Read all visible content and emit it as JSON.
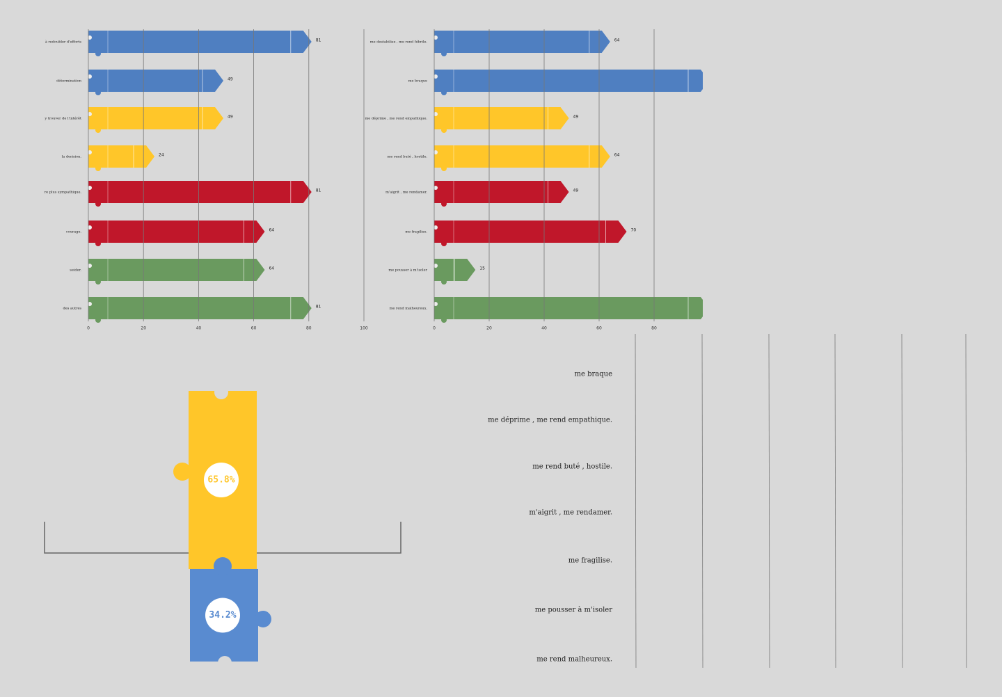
{
  "chart_data": [
    {
      "type": "bar",
      "categories": [
        "à redoubler d'efforts",
        "détermination",
        "y trouver de l'intérêt",
        "la derision.",
        "re plus sympathique.",
        "courage.",
        "seider.",
        "des autres"
      ],
      "values": [
        81,
        49,
        49,
        24,
        81,
        64,
        64,
        81
      ],
      "colors": [
        "#4f7fc1",
        "#4f7fc1",
        "#ffc629",
        "#ffc629",
        "#c0172a",
        "#c0172a",
        "#6a9a5f",
        "#6a9a5f"
      ],
      "xlim": [
        0,
        100
      ],
      "xticks": [
        0,
        20,
        40,
        60,
        80,
        100
      ],
      "grid": true
    },
    {
      "type": "bar",
      "categories": [
        "me destabilise , me rend fébrile.",
        "me braque",
        "me déprime , me rend empathique.",
        "me rend  buté , hostile.",
        "m'aigrit , me rendamer.",
        "me fragilise.",
        "me pousser à m'isoler",
        "me rend malheureux."
      ],
      "values": [
        64,
        100,
        49,
        64,
        49,
        70,
        15,
        100
      ],
      "value_labels": [
        "64",
        null,
        "49",
        "64",
        "49",
        "70",
        "15",
        null
      ],
      "colors": [
        "#4f7fc1",
        "#4f7fc1",
        "#ffc629",
        "#ffc629",
        "#c0172a",
        "#c0172a",
        "#6a9a5f",
        "#6a9a5f"
      ],
      "xlim": [
        0,
        100
      ],
      "xticks": [
        0,
        20,
        40,
        60,
        80
      ],
      "grid": true
    },
    {
      "type": "puzzle",
      "values": [
        65.8,
        34.2
      ],
      "value_labels": [
        "65.8%",
        "34.2%"
      ],
      "colors": [
        "#ffc629",
        "#598bd0"
      ]
    }
  ],
  "label_list": [
    "me braque",
    "me déprime , me rend empathique.",
    "me rend  buté , hostile.",
    "m'aigrit , me rendamer.",
    "me fragilise.",
    "me pousser à m'isoler",
    "me rend malheureux."
  ]
}
